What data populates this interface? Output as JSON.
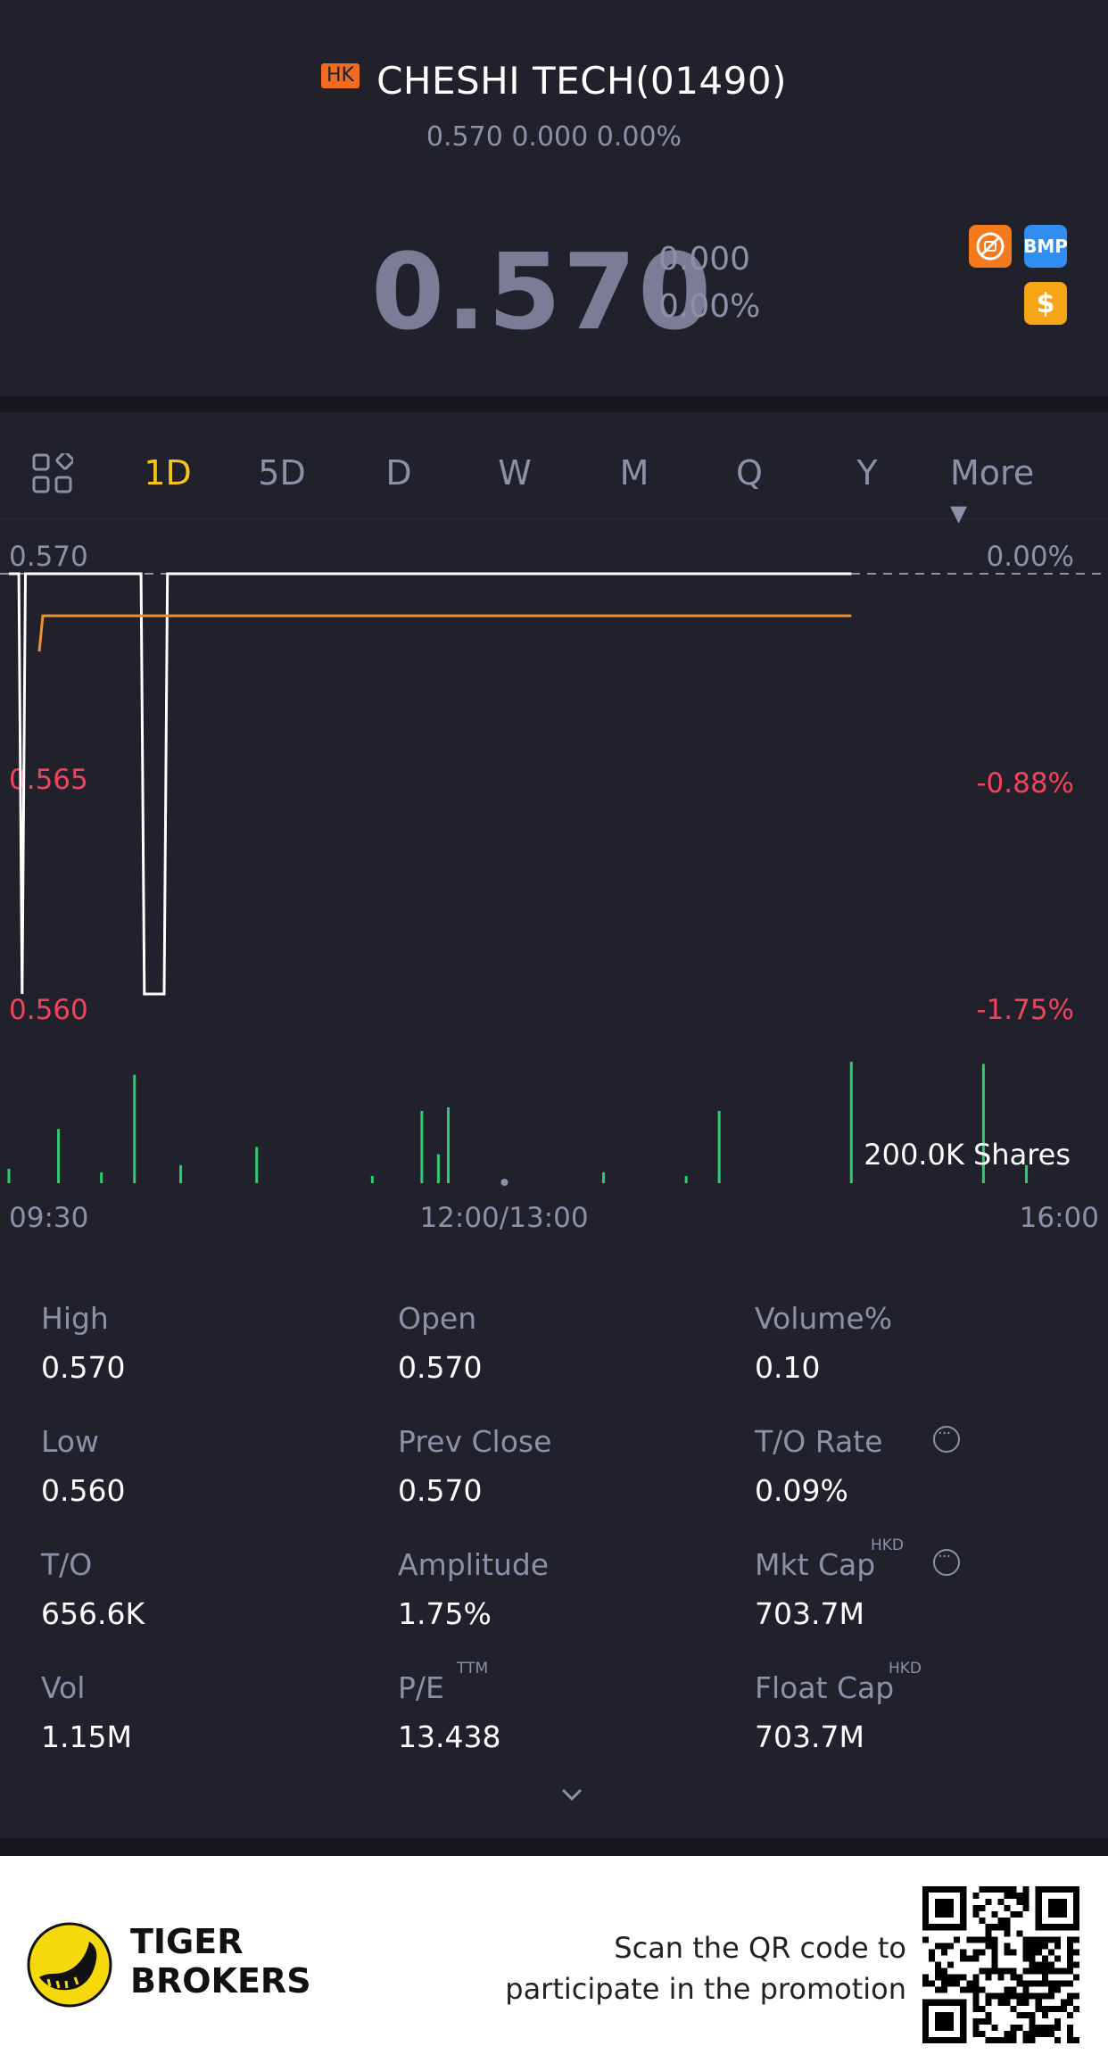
{
  "header": {
    "market_badge": "HK",
    "title": "CHESHI TECH(01490)",
    "subtitle": "0.570 0.000 0.00%",
    "price": "0.570",
    "change": "0.000",
    "change_pct": "0.00%",
    "badge_icons": [
      "no-trade-icon",
      "bmp-badge-icon",
      "dollar-icon"
    ],
    "bmp_label": "BMP",
    "dollar_label": "$"
  },
  "tabs": [
    "1D",
    "5D",
    "D",
    "W",
    "M",
    "Q",
    "Y",
    "More ▾"
  ],
  "active_tab": "1D",
  "chart_labels": {
    "y_left": [
      "0.570",
      "0.565",
      "0.560"
    ],
    "y_right": [
      "0.00%",
      "-0.88%",
      "-1.75%"
    ],
    "volume_label": "200.0K Shares",
    "x": [
      "09:30",
      "12:00/13:00",
      "16:00"
    ]
  },
  "chart_data": {
    "type": "line",
    "title": "",
    "ylim": [
      0.56,
      0.57
    ],
    "price_series": [
      {
        "t": "09:30",
        "v": 0.57
      },
      {
        "t": "09:33",
        "v": 0.57
      },
      {
        "t": "09:34",
        "v": 0.56
      },
      {
        "t": "09:35",
        "v": 0.57
      },
      {
        "t": "10:10",
        "v": 0.57
      },
      {
        "t": "10:11",
        "v": 0.56
      },
      {
        "t": "10:17",
        "v": 0.56
      },
      {
        "t": "10:18",
        "v": 0.57
      },
      {
        "t": "14:45",
        "v": 0.57
      }
    ],
    "avg_price": 0.569,
    "volume_max": 200000,
    "volume_series": [
      {
        "t": "09:30",
        "v": 20000
      },
      {
        "t": "09:45",
        "v": 75000
      },
      {
        "t": "09:58",
        "v": 15000
      },
      {
        "t": "10:08",
        "v": 150000
      },
      {
        "t": "10:22",
        "v": 25000
      },
      {
        "t": "10:45",
        "v": 50000
      },
      {
        "t": "11:20",
        "v": 10000
      },
      {
        "t": "11:35",
        "v": 100000
      },
      {
        "t": "11:40",
        "v": 40000
      },
      {
        "t": "11:43",
        "v": 105000
      },
      {
        "t": "13:30",
        "v": 15000
      },
      {
        "t": "13:55",
        "v": 10000
      },
      {
        "t": "14:05",
        "v": 100000
      },
      {
        "t": "14:45",
        "v": 168000
      },
      {
        "t": "15:25",
        "v": 165000
      },
      {
        "t": "15:38",
        "v": 25000
      }
    ]
  },
  "stats": [
    {
      "label": "High",
      "value": "0.570",
      "sup": "",
      "info": false
    },
    {
      "label": "Open",
      "value": "0.570",
      "sup": "",
      "info": false
    },
    {
      "label": "Volume%",
      "value": "0.10",
      "sup": "",
      "info": false
    },
    {
      "label": "Low",
      "value": "0.560",
      "sup": "",
      "info": false
    },
    {
      "label": "Prev Close",
      "value": "0.570",
      "sup": "",
      "info": false
    },
    {
      "label": "T/O Rate",
      "value": "0.09%",
      "sup": "",
      "info": true
    },
    {
      "label": "T/O",
      "value": "656.6K",
      "sup": "",
      "info": false
    },
    {
      "label": "Amplitude",
      "value": "1.75%",
      "sup": "",
      "info": false
    },
    {
      "label": "Mkt Cap",
      "value": "703.7M",
      "sup": "HKD",
      "info": true
    },
    {
      "label": "Vol",
      "value": "1.15M",
      "sup": "",
      "info": false
    },
    {
      "label": "P/E",
      "value": "13.438",
      "sup": "TTM",
      "info": false
    },
    {
      "label": "Float Cap",
      "value": "703.7M",
      "sup": "HKD",
      "info": false
    }
  ],
  "footer": {
    "brand_line1": "TIGER",
    "brand_line2": "BROKERS",
    "promo_line1": "Scan the QR code to",
    "promo_line2": "participate in the promotion"
  },
  "colors": {
    "bg": "#20212b",
    "accent_tab": "#f5c518",
    "down_red": "#f0445c",
    "volume_green": "#2ecc71",
    "avg_line": "#f0902c"
  }
}
